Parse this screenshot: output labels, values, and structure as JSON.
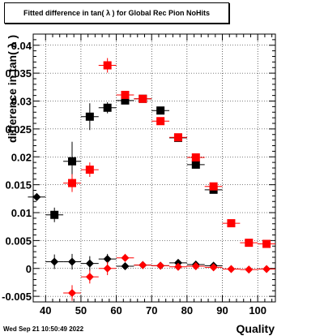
{
  "title": "Fitted difference in tan( λ ) for Global Rec Pion NoHits",
  "timestamp": "Wed Sep 21 10:50:49 2022",
  "chart_data": {
    "type": "scatter",
    "title": "Fitted difference in tan( λ ) for Global Rec Pion NoHits",
    "xlabel": "Quality",
    "ylabel": "difference in tan( λ )",
    "xlim": [
      36.5,
      105
    ],
    "ylim": [
      -0.006,
      0.042
    ],
    "xticks": [
      40,
      50,
      60,
      70,
      80,
      90,
      100
    ],
    "yticks": [
      -0.005,
      0,
      0.005,
      0.01,
      0.015,
      0.02,
      0.025,
      0.03,
      0.035,
      0.04
    ],
    "ytick_labels": [
      "-0.005",
      "0",
      "0.005",
      "0.01",
      "0.015",
      "0.02",
      "0.025",
      "0.03",
      "0.035",
      "0.04"
    ],
    "grid": true,
    "series": [
      {
        "marker": "square",
        "color": "#000000",
        "points": [
          {
            "x": 42.5,
            "y": 0.0096,
            "ey": 0.0013
          },
          {
            "x": 47.5,
            "y": 0.0192,
            "ey": 0.0035
          },
          {
            "x": 52.5,
            "y": 0.0272,
            "ey": 0.0024
          },
          {
            "x": 57.5,
            "y": 0.0288,
            "ey": 0.001
          },
          {
            "x": 62.5,
            "y": 0.0301,
            "ey": 0.0005
          },
          {
            "x": 67.5,
            "y": 0.0304,
            "ey": 0.0004
          },
          {
            "x": 72.5,
            "y": 0.0283,
            "ey": 0.0003
          },
          {
            "x": 77.5,
            "y": 0.0234,
            "ey": 0.0003
          },
          {
            "x": 82.5,
            "y": 0.0186,
            "ey": 0.0003
          },
          {
            "x": 87.5,
            "y": 0.0141,
            "ey": 0.0003
          }
        ]
      },
      {
        "marker": "square",
        "color": "#ff0000",
        "points": [
          {
            "x": 47.5,
            "y": 0.0153,
            "ey": 0.0016
          },
          {
            "x": 52.5,
            "y": 0.0177,
            "ey": 0.0013
          },
          {
            "x": 57.5,
            "y": 0.0364,
            "ey": 0.0013
          },
          {
            "x": 62.5,
            "y": 0.0311,
            "ey": 0.0006
          },
          {
            "x": 67.5,
            "y": 0.0304,
            "ey": 0.0004
          },
          {
            "x": 72.5,
            "y": 0.0264,
            "ey": 0.0003
          },
          {
            "x": 77.5,
            "y": 0.0235,
            "ey": 0.0003
          },
          {
            "x": 82.5,
            "y": 0.0199,
            "ey": 0.0003
          },
          {
            "x": 87.5,
            "y": 0.0147,
            "ey": 0.0003
          },
          {
            "x": 92.5,
            "y": 0.0081,
            "ey": 0.0002
          },
          {
            "x": 97.5,
            "y": 0.0046,
            "ey": 0.0002
          },
          {
            "x": 102.5,
            "y": 0.0044,
            "ey": 0.0002
          }
        ]
      },
      {
        "marker": "diamond",
        "color": "#000000",
        "points": [
          {
            "x": 37.5,
            "y": 0.0128,
            "ey": 0.0001
          },
          {
            "x": 42.5,
            "y": 0.0012,
            "ey": 0.0013
          },
          {
            "x": 47.5,
            "y": 0.0012,
            "ey": 0.0014
          },
          {
            "x": 52.5,
            "y": 0.0009,
            "ey": 0.0013
          },
          {
            "x": 57.5,
            "y": 0.0017,
            "ey": 0.0009
          },
          {
            "x": 62.5,
            "y": 0.0004,
            "ey": 0.0006
          },
          {
            "x": 67.5,
            "y": 0.0006,
            "ey": 0.0004
          },
          {
            "x": 72.5,
            "y": 0.0005,
            "ey": 0.0003
          },
          {
            "x": 77.5,
            "y": 0.001,
            "ey": 0.0003
          },
          {
            "x": 82.5,
            "y": 0.0007,
            "ey": 0.0003
          },
          {
            "x": 87.5,
            "y": 0.0005,
            "ey": 0.0003
          }
        ]
      },
      {
        "marker": "diamond",
        "color": "#ff0000",
        "points": [
          {
            "x": 47.5,
            "y": -0.0044,
            "ey": 0.0014
          },
          {
            "x": 52.5,
            "y": -0.0015,
            "ey": 0.0012
          },
          {
            "x": 57.5,
            "y": 0.0,
            "ey": 0.0012
          },
          {
            "x": 62.5,
            "y": 0.0019,
            "ey": 0.0007
          },
          {
            "x": 67.5,
            "y": 0.0006,
            "ey": 0.0004
          },
          {
            "x": 72.5,
            "y": 0.0005,
            "ey": 0.0003
          },
          {
            "x": 77.5,
            "y": 0.0003,
            "ey": 0.0003
          },
          {
            "x": 82.5,
            "y": 0.0004,
            "ey": 0.0003
          },
          {
            "x": 87.5,
            "y": 0.0002,
            "ey": 0.0003
          },
          {
            "x": 92.5,
            "y": -0.0001,
            "ey": 0.0002
          },
          {
            "x": 97.5,
            "y": -0.0002,
            "ey": 0.0002
          },
          {
            "x": 102.5,
            "y": -0.0001,
            "ey": 0.0002
          }
        ]
      }
    ]
  }
}
